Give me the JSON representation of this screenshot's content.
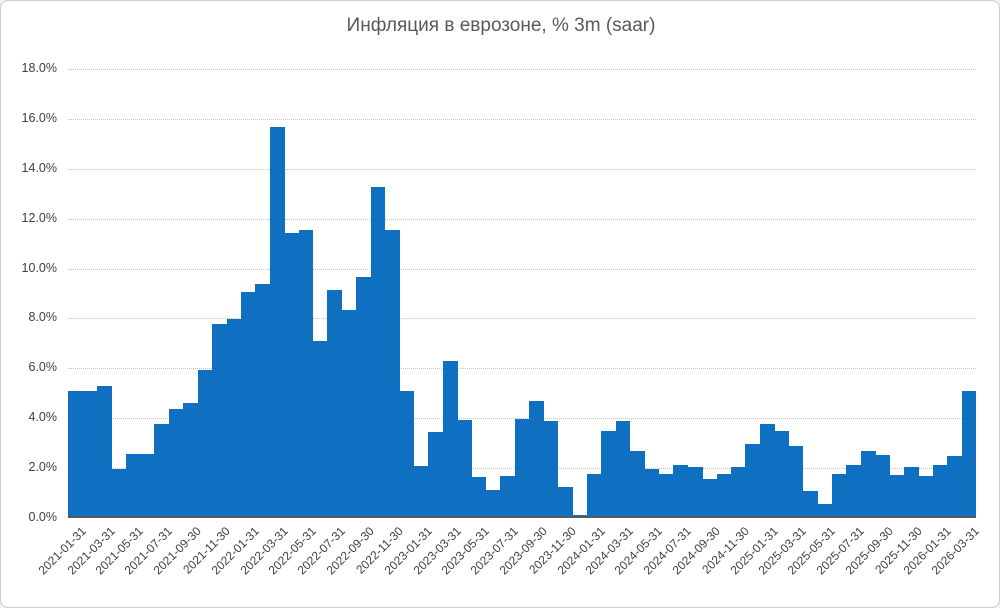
{
  "chart_data": {
    "type": "bar",
    "title": "Инфляция в еврозоне, % 3m (saar)",
    "xlabel": "",
    "ylabel": "",
    "ylim": [
      0,
      18
    ],
    "ytick_step": 2,
    "ytick_labels": [
      "0.0%",
      "2.0%",
      "4.0%",
      "6.0%",
      "8.0%",
      "10.0%",
      "12.0%",
      "14.0%",
      "16.0%",
      "18.0%"
    ],
    "grid": "horizontal-dotted",
    "legend_position": "none",
    "x": [
      "2021-01-31",
      "2021-02-28",
      "2021-03-31",
      "2021-04-30",
      "2021-05-31",
      "2021-06-30",
      "2021-07-31",
      "2021-08-31",
      "2021-09-30",
      "2021-10-31",
      "2021-11-30",
      "2021-12-31",
      "2022-01-31",
      "2022-02-28",
      "2022-03-31",
      "2022-04-30",
      "2022-05-31",
      "2022-06-30",
      "2022-07-31",
      "2022-08-31",
      "2022-09-30",
      "2022-10-31",
      "2022-11-30",
      "2022-12-31",
      "2023-01-31",
      "2023-02-28",
      "2023-03-31",
      "2023-04-30",
      "2023-05-31",
      "2023-06-30",
      "2023-07-31",
      "2023-08-31",
      "2023-09-30",
      "2023-10-31",
      "2023-11-30",
      "2023-12-31",
      "2024-01-31",
      "2024-02-29",
      "2024-03-31",
      "2024-04-30",
      "2024-05-31",
      "2024-06-30",
      "2024-07-31",
      "2024-08-31",
      "2024-09-30",
      "2024-10-31",
      "2024-11-30",
      "2024-12-31",
      "2025-01-31",
      "2025-02-28",
      "2025-03-31",
      "2025-04-30",
      "2025-05-31",
      "2025-06-30",
      "2025-07-31",
      "2025-08-31",
      "2025-09-30",
      "2025-10-31",
      "2025-11-30",
      "2025-12-31",
      "2026-01-31",
      "2026-02-28",
      "2026-03-31"
    ],
    "values": [
      5.0,
      5.0,
      5.2,
      1.9,
      2.5,
      2.5,
      3.7,
      4.3,
      4.55,
      5.85,
      7.7,
      7.9,
      9.0,
      9.3,
      15.6,
      11.35,
      11.45,
      7.0,
      9.05,
      8.25,
      9.6,
      13.2,
      11.45,
      5.0,
      2.0,
      3.35,
      6.2,
      3.85,
      1.55,
      1.05,
      1.6,
      3.9,
      4.6,
      3.8,
      1.15,
      0.05,
      1.7,
      3.4,
      3.8,
      2.6,
      1.9,
      1.7,
      2.05,
      1.95,
      1.5,
      1.7,
      1.95,
      2.9,
      3.7,
      3.4,
      2.8,
      1.0,
      0.5,
      1.7,
      2.05,
      2.6,
      2.45,
      1.65,
      1.95,
      1.6,
      2.05,
      2.4,
      5.0
    ],
    "x_tick_labels": [
      "2021-01-31",
      "2021-03-31",
      "2021-05-31",
      "2021-07-31",
      "2021-09-30",
      "2021-11-30",
      "2022-01-31",
      "2022-03-31",
      "2022-05-31",
      "2022-07-31",
      "2022-09-30",
      "2022-11-30",
      "2023-01-31",
      "2023-03-31",
      "2023-05-31",
      "2023-07-31",
      "2023-09-30",
      "2023-11-30",
      "2024-01-31",
      "2024-03-31",
      "2024-05-31",
      "2024-07-31",
      "2024-09-30",
      "2024-11-30",
      "2025-01-31",
      "2025-03-31",
      "2025-05-31",
      "2025-07-31",
      "2025-09-30",
      "2025-11-30",
      "2026-01-31",
      "2026-03-31"
    ],
    "x_tick_every": 2,
    "colors": {
      "bar": "#0f70c1",
      "axis_line": "#595959",
      "gridline": "#c3c3c3",
      "tick_text": "#404040",
      "title_text": "#595959",
      "background": "#ffffff"
    }
  }
}
